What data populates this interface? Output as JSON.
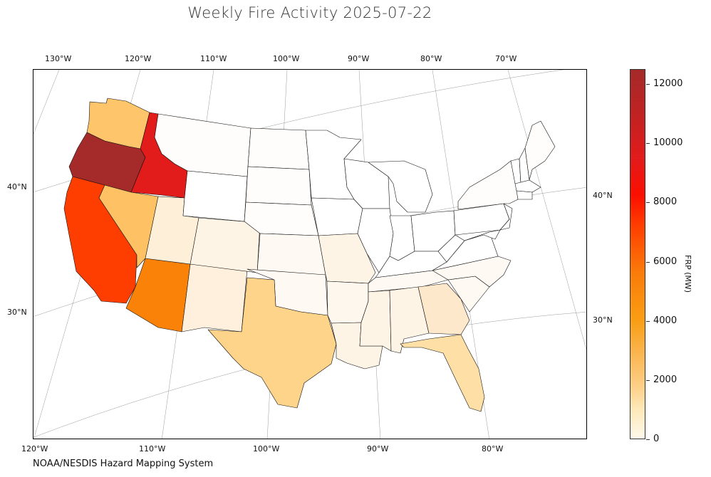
{
  "title": "Weekly Fire Activity 2025-07-22",
  "source": "NOAA/NESDIS Hazard Mapping System",
  "top_lon_labels": [
    "130°W",
    "120°W",
    "110°W",
    "100°W",
    "90°W",
    "80°W",
    "70°W"
  ],
  "bottom_lon_labels": [
    "120°W",
    "110°W",
    "100°W",
    "90°W",
    "80°W"
  ],
  "left_lat_labels": [
    "40°N",
    "30°N"
  ],
  "right_lat_labels": [
    "40°N",
    "30°N"
  ],
  "colorbar": {
    "label": "FRP (MW)",
    "ticks": [
      "0",
      "2000",
      "4000",
      "6000",
      "8000",
      "10000",
      "12000"
    ],
    "min": 0,
    "max": 12500
  },
  "colors": {
    "oregon": "#a52a2a",
    "idaho": "#e21b1b",
    "california": "#fe3d00",
    "arizona": "#fa8209",
    "washington": "#fec56b",
    "nevada": "#fec164",
    "texas": "#fed48a",
    "florida": "#fee0a6",
    "utah": "#fef0d8",
    "new_mexico": "#fef0dc",
    "georgia": "#fee8cb",
    "low": "#fefaf3",
    "near_zero": "#fffdfb"
  },
  "chart_data": {
    "type": "choropleth",
    "title": "Weekly Fire Activity 2025-07-22",
    "colorbar_label": "FRP (MW)",
    "colorbar_range": [
      0,
      12500
    ],
    "values_approx": [
      {
        "state": "Oregon",
        "frp": 12200
      },
      {
        "state": "Idaho",
        "frp": 10200
      },
      {
        "state": "California",
        "frp": 7300
      },
      {
        "state": "Arizona",
        "frp": 5800
      },
      {
        "state": "Washington",
        "frp": 2000
      },
      {
        "state": "Nevada",
        "frp": 2100
      },
      {
        "state": "Texas",
        "frp": 1500
      },
      {
        "state": "Florida",
        "frp": 1100
      },
      {
        "state": "Utah",
        "frp": 400
      },
      {
        "state": "New Mexico",
        "frp": 400
      },
      {
        "state": "Georgia",
        "frp": 600
      },
      {
        "state": "Colorado",
        "frp": 300
      },
      {
        "state": "Louisiana",
        "frp": 300
      },
      {
        "state": "Alabama",
        "frp": 300
      },
      {
        "state": "Mississippi",
        "frp": 300
      },
      {
        "state": "Missouri",
        "frp": 300
      },
      {
        "state": "Arkansas",
        "frp": 200
      },
      {
        "state": "Oklahoma",
        "frp": 150
      },
      {
        "state": "Kansas",
        "frp": 150
      },
      {
        "state": "South Carolina",
        "frp": 150
      },
      {
        "state": "Tennessee",
        "frp": 100
      },
      {
        "state": "North Carolina",
        "frp": 100
      },
      {
        "state": "Montana",
        "frp": 50
      },
      {
        "state": "Wyoming",
        "frp": 50
      },
      {
        "state": "Other",
        "frp": 20
      }
    ]
  }
}
